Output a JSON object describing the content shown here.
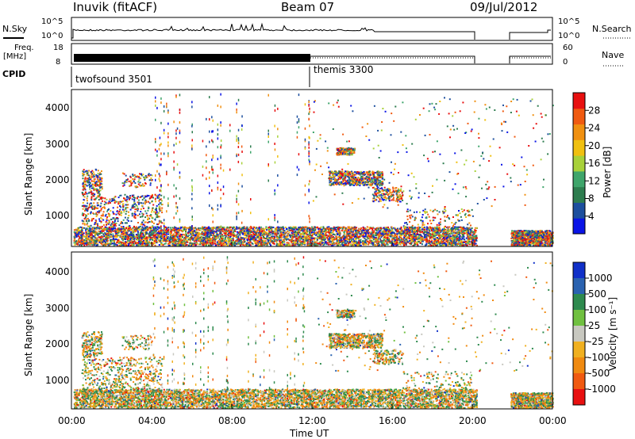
{
  "header": {
    "station": "Inuvik (fitACF)",
    "beam": "Beam 07",
    "date": "09/Jul/2012"
  },
  "params": {
    "nsky_label": "N.Sky",
    "nsky_ticks": [
      "10^5",
      "10^0"
    ],
    "nsearch_label": "N.Search",
    "nsearch_ticks": [
      "10^5",
      "10^0"
    ],
    "freq_label": "Freq.",
    "freq_unit": "[MHz]",
    "freq_ticks": [
      "18",
      "8"
    ],
    "nave_label": "Nave",
    "nave_ticks": [
      "60",
      "0"
    ],
    "cpid_label": "CPID",
    "cpid_modes": [
      {
        "name": "twofsound 3501",
        "start_hour": 0
      },
      {
        "name": "themis 3300",
        "start_hour": 12
      }
    ]
  },
  "colors": {
    "power": [
      "#0a14e6",
      "#1d4f9e",
      "#2e7d4f",
      "#3fa56b",
      "#a8d13a",
      "#f0c010",
      "#f09010",
      "#f05a10",
      "#e81010"
    ],
    "velocity": [
      "#1030c8",
      "#2a62b0",
      "#2e8a4e",
      "#70c040",
      "#c8c8c0",
      "#f0b020",
      "#f08a10",
      "#f05a10",
      "#e81010"
    ]
  },
  "chart_data": [
    {
      "type": "heatmap",
      "name": "power",
      "xlabel": "",
      "ylabel": "Slant Range [km]",
      "yticks": [
        "1000",
        "2000",
        "3000",
        "4000"
      ],
      "ylim": [
        180,
        4500
      ],
      "xlim": [
        0,
        24
      ],
      "colorbar_label": "Power [dB]",
      "colorbar_ticks": [
        "4",
        "8",
        "12",
        "16",
        "20",
        "24",
        "28"
      ]
    },
    {
      "type": "heatmap",
      "name": "velocity",
      "xlabel": "Time UT",
      "ylabel": "Slant Range [km]",
      "yticks": [
        "1000",
        "2000",
        "3000",
        "4000"
      ],
      "ylim": [
        180,
        4500
      ],
      "xlim": [
        0,
        24
      ],
      "xticks": [
        "00:00",
        "04:00",
        "08:00",
        "12:00",
        "16:00",
        "20:00",
        "00:00"
      ],
      "colorbar_label": "Velocity [m s⁻¹]",
      "colorbar_ticks": [
        "1000",
        "500",
        "100",
        "25",
        "-25",
        "-100",
        "-500",
        "-1000"
      ]
    }
  ]
}
